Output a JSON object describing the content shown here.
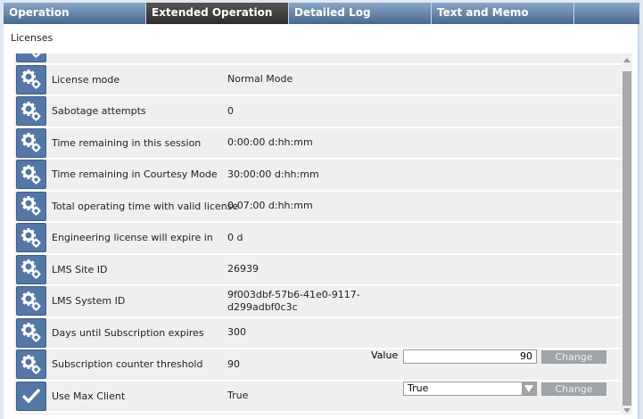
{
  "tabs": [
    {
      "label": "Operation"
    },
    {
      "label": "Extended Operation",
      "active": true
    },
    {
      "label": "Detailed Log"
    },
    {
      "label": "Text and Memo"
    }
  ],
  "section_title": "Licenses",
  "rows": [
    {
      "label": "",
      "value": "",
      "icon": "gears-icon"
    },
    {
      "label": "License mode",
      "value": "Normal Mode",
      "icon": "gears-icon"
    },
    {
      "label": "Sabotage attempts",
      "value": "0",
      "icon": "gears-icon"
    },
    {
      "label": "Time remaining in this session",
      "value": "0:00:00  d:hh:mm",
      "icon": "gears-icon"
    },
    {
      "label": "Time remaining in Courtesy Mode",
      "value": "30:00:00  d:hh:mm",
      "icon": "gears-icon"
    },
    {
      "label": "Total operating time with valid license",
      "value": "0:07:00  d:hh:mm",
      "icon": "gears-icon"
    },
    {
      "label": "Engineering license will expire in",
      "value": "0  d",
      "icon": "gears-icon"
    },
    {
      "label": "LMS Site ID",
      "value": "26939",
      "icon": "gears-icon"
    },
    {
      "label": "LMS System ID",
      "value": "9f003dbf-57b6-41e0-9117-d299adbf0c3c",
      "icon": "gears-icon"
    },
    {
      "label": "Days until Subscription expires",
      "value": "300",
      "icon": "gears-icon"
    },
    {
      "label": "Subscription counter threshold",
      "value": "90",
      "icon": "gears-icon"
    },
    {
      "label": "Use Max Client",
      "value": "True",
      "icon": "check-icon"
    }
  ],
  "threshold_edit": {
    "label": "Value",
    "value": "90",
    "button": "Change"
  },
  "max_client_edit": {
    "selected": "True",
    "button": "Change"
  }
}
